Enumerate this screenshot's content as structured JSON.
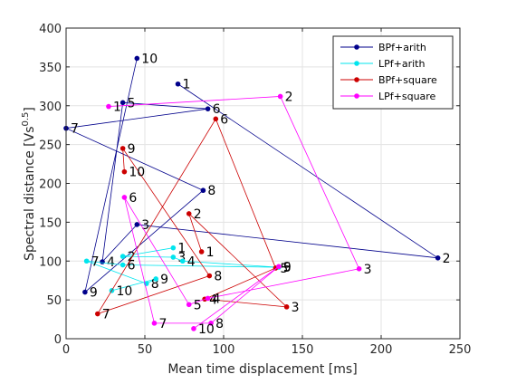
{
  "chart_data": {
    "type": "scatter",
    "title": "",
    "xlabel": "Mean time displacement [ms]",
    "ylabel_main": "Spectral distance [Vs",
    "ylabel_sup": "0.5",
    "ylabel_end": "]",
    "xlim": [
      0,
      250
    ],
    "ylim": [
      0,
      400
    ],
    "xticks": [
      0,
      50,
      100,
      150,
      200,
      250
    ],
    "yticks": [
      0,
      50,
      100,
      150,
      200,
      250,
      300,
      350,
      400
    ],
    "grid": true,
    "legend_position": "top-right",
    "series": [
      {
        "name": "BPf+arith",
        "color": "#00008b",
        "points": [
          {
            "label": "1",
            "x": 71,
            "y": 328
          },
          {
            "label": "2",
            "x": 236,
            "y": 104
          },
          {
            "label": "3",
            "x": 45,
            "y": 147
          },
          {
            "label": "4",
            "x": 23,
            "y": 99
          },
          {
            "label": "5",
            "x": 36,
            "y": 304
          },
          {
            "label": "6",
            "x": 90,
            "y": 296
          },
          {
            "label": "7",
            "x": 0,
            "y": 271
          },
          {
            "label": "8",
            "x": 87,
            "y": 191
          },
          {
            "label": "9",
            "x": 12,
            "y": 60
          },
          {
            "label": "10",
            "x": 45,
            "y": 361
          }
        ]
      },
      {
        "name": "LPf+arith",
        "color": "#00e5ee",
        "points": [
          {
            "label": "1",
            "x": 68,
            "y": 117
          },
          {
            "label": "2",
            "x": 36,
            "y": 106
          },
          {
            "label": "3",
            "x": 68,
            "y": 105
          },
          {
            "label": "4",
            "x": 74,
            "y": 100
          },
          {
            "label": "5",
            "x": 135,
            "y": 92
          },
          {
            "label": "6",
            "x": 36,
            "y": 95
          },
          {
            "label": "7",
            "x": 13,
            "y": 100
          },
          {
            "label": "8",
            "x": 51,
            "y": 71
          },
          {
            "label": "9",
            "x": 57,
            "y": 77
          },
          {
            "label": "10",
            "x": 29,
            "y": 62
          }
        ]
      },
      {
        "name": "BPf+square",
        "color": "#cc0000",
        "points": [
          {
            "label": "1",
            "x": 86,
            "y": 112
          },
          {
            "label": "2",
            "x": 78,
            "y": 161
          },
          {
            "label": "3",
            "x": 140,
            "y": 41
          },
          {
            "label": "4",
            "x": 88,
            "y": 51
          },
          {
            "label": "5",
            "x": 133,
            "y": 91
          },
          {
            "label": "6",
            "x": 95,
            "y": 283
          },
          {
            "label": "7",
            "x": 20,
            "y": 32
          },
          {
            "label": "8",
            "x": 91,
            "y": 81
          },
          {
            "label": "9",
            "x": 36,
            "y": 245
          },
          {
            "label": "10",
            "x": 37,
            "y": 215
          }
        ]
      },
      {
        "name": "LPf+square",
        "color": "#ff00ff",
        "points": [
          {
            "label": "1",
            "x": 27,
            "y": 299
          },
          {
            "label": "2",
            "x": 136,
            "y": 312
          },
          {
            "label": "3",
            "x": 186,
            "y": 90
          },
          {
            "label": "4",
            "x": 90,
            "y": 52
          },
          {
            "label": "5",
            "x": 78,
            "y": 44
          },
          {
            "label": "6",
            "x": 37,
            "y": 182
          },
          {
            "label": "7",
            "x": 56,
            "y": 20
          },
          {
            "label": "8",
            "x": 92,
            "y": 20
          },
          {
            "label": "9",
            "x": 135,
            "y": 93
          },
          {
            "label": "10",
            "x": 81,
            "y": 13
          }
        ]
      }
    ]
  }
}
